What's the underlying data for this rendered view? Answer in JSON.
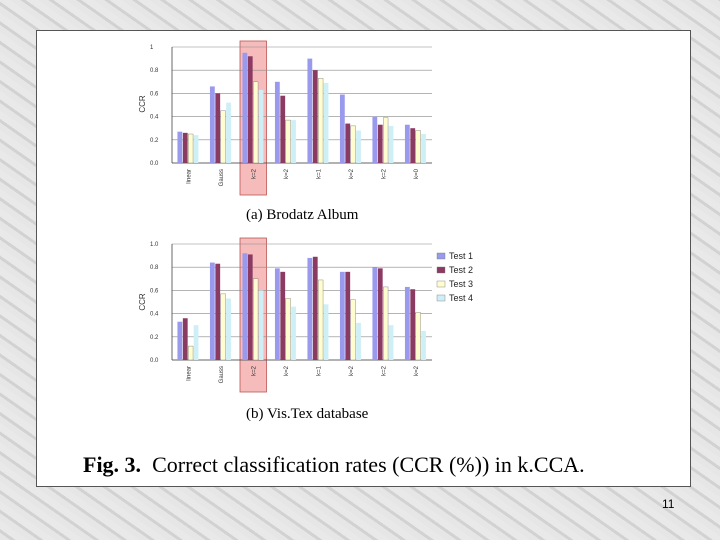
{
  "figure": {
    "caption_label": "Fig. 3.",
    "caption_text": "Correct classification rates (CCR (%)) in k.CCA.",
    "page_number": "11"
  },
  "colors": {
    "test1": "#9999ee",
    "test2": "#8b3a62",
    "test3": "#fffcd0",
    "test4": "#cfeff7",
    "highlight": "#f2a0a0"
  },
  "chart_data": [
    {
      "type": "bar",
      "subtitle": "(a) Brodatz Album",
      "ylabel": "CCR",
      "ylim": [
        0,
        1.0
      ],
      "yticks": [
        "0.0",
        "0.2",
        "0.4",
        "0.6",
        "0.8",
        "1"
      ],
      "categories": [
        "linear",
        "Gauss",
        "k=2",
        "k=2",
        "k=1",
        "k=2",
        "k=2",
        "k=0"
      ],
      "highlight_category_index": 2,
      "grid": true,
      "series": [
        {
          "name": "Test 1",
          "values": [
            0.27,
            0.66,
            0.95,
            0.7,
            0.9,
            0.59,
            0.4,
            0.33
          ]
        },
        {
          "name": "Test 2",
          "values": [
            0.26,
            0.6,
            0.92,
            0.58,
            0.8,
            0.34,
            0.33,
            0.3
          ]
        },
        {
          "name": "Test 3",
          "values": [
            0.25,
            0.45,
            0.7,
            0.37,
            0.73,
            0.32,
            0.39,
            0.28
          ]
        },
        {
          "name": "Test 4",
          "values": [
            0.24,
            0.52,
            0.63,
            0.37,
            0.69,
            0.28,
            0.32,
            0.25
          ]
        }
      ]
    },
    {
      "type": "bar",
      "subtitle": "(b) Vis.Tex database",
      "ylabel": "CCR",
      "ylim": [
        0,
        1.0
      ],
      "yticks": [
        "0.0",
        "0.2",
        "0.4",
        "0.6",
        "0.8",
        "1.0"
      ],
      "categories": [
        "linear",
        "Gauss",
        "k=2",
        "k=2",
        "k=1",
        "k=2",
        "k=2",
        "k=2"
      ],
      "highlight_category_index": 2,
      "grid": true,
      "legend": "right",
      "series": [
        {
          "name": "Test 1",
          "values": [
            0.33,
            0.84,
            0.92,
            0.79,
            0.88,
            0.76,
            0.8,
            0.63
          ]
        },
        {
          "name": "Test 2",
          "values": [
            0.36,
            0.83,
            0.91,
            0.76,
            0.89,
            0.76,
            0.79,
            0.61
          ]
        },
        {
          "name": "Test 3",
          "values": [
            0.12,
            0.57,
            0.7,
            0.53,
            0.69,
            0.52,
            0.63,
            0.41
          ]
        },
        {
          "name": "Test 4",
          "values": [
            0.3,
            0.53,
            0.6,
            0.46,
            0.48,
            0.32,
            0.3,
            0.25
          ]
        }
      ]
    }
  ]
}
